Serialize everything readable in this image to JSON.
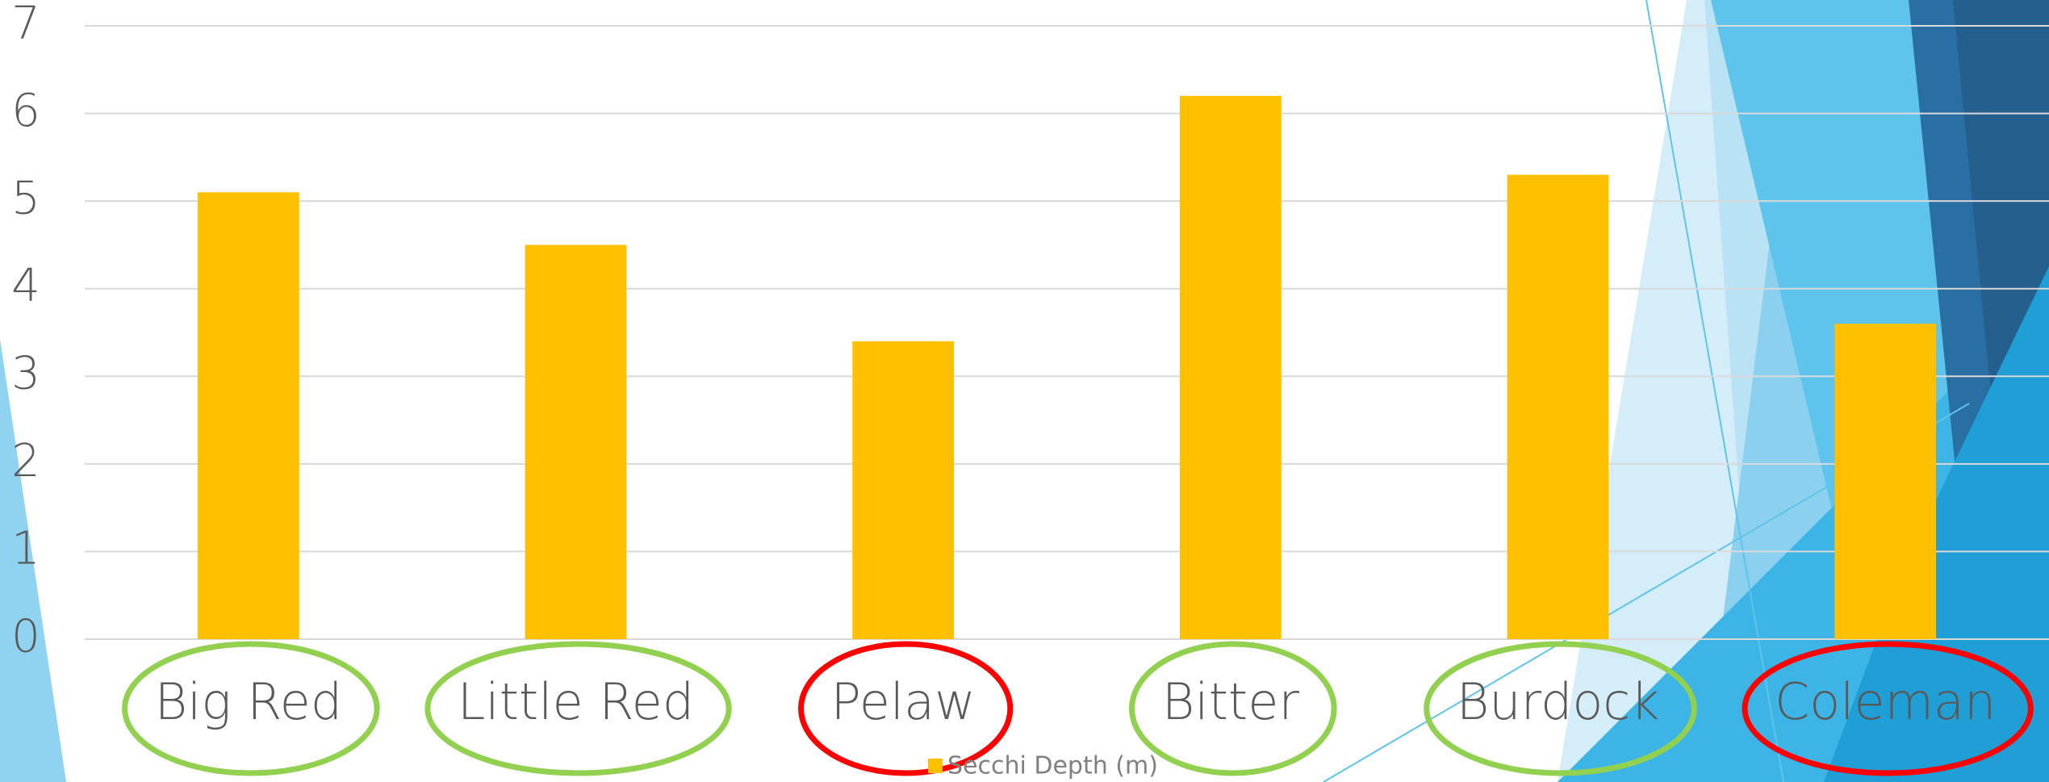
{
  "chart_data": {
    "type": "bar",
    "categories": [
      "Big Red",
      "Little Red",
      "Pelaw",
      "Bitter",
      "Burdock",
      "Coleman"
    ],
    "series": [
      {
        "name": "Secchi Depth (m)",
        "color": "#ffc000",
        "values": [
          5.1,
          4.5,
          3.4,
          6.2,
          5.3,
          3.6
        ]
      }
    ],
    "category_circle_colors": [
      "#92d050",
      "#92d050",
      "#ff0000",
      "#92d050",
      "#92d050",
      "#ff0000"
    ],
    "ylim": [
      0,
      7
    ],
    "yticks": [
      0,
      1,
      2,
      3,
      4,
      5,
      6,
      7
    ],
    "grid": true,
    "legend": "bottom"
  }
}
